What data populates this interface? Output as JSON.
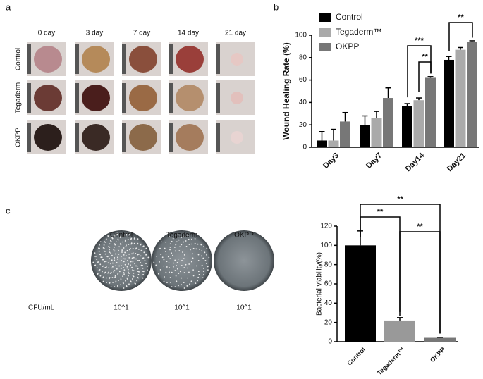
{
  "figure_a": {
    "panel_label": "a",
    "columns": [
      "0 day",
      "3 day",
      "7 day",
      "14 day",
      "21 day"
    ],
    "rows": [
      "Control",
      "Tegaderm",
      "OKPP"
    ]
  },
  "figure_c_plates": {
    "plates": [
      "Control",
      "Tegaderm",
      "OKPP"
    ],
    "unit_label": "CFU/mL",
    "counts": [
      "10^1",
      "10^1",
      "10^1"
    ]
  },
  "chart_data": [
    {
      "type": "grouped-bar",
      "panel_label": "b",
      "y_label": "Wound Healing Rate (%)",
      "categories": [
        "Day3",
        "Day7",
        "Day14",
        "Day21"
      ],
      "series": [
        {
          "name": "Control",
          "color": "#000000",
          "values": [
            6,
            20,
            37,
            78
          ],
          "errors": [
            8,
            8,
            2,
            3
          ]
        },
        {
          "name": "Tegaderm™",
          "color": "#aaaaaa",
          "values": [
            6,
            26,
            42,
            87
          ],
          "errors": [
            10,
            6,
            2,
            2
          ]
        },
        {
          "name": "OKPP",
          "color": "#777777",
          "values": [
            23,
            44,
            62,
            94
          ],
          "errors": [
            8,
            9,
            1,
            1
          ]
        }
      ],
      "ylim": [
        0,
        100
      ],
      "yticks": [
        0,
        20,
        40,
        60,
        80,
        100
      ],
      "legend": "top-left",
      "annotations": [
        "***",
        "**",
        "**"
      ]
    },
    {
      "type": "bar",
      "panel_label": "c",
      "y_label": "Bacterial viability(%)",
      "categories": [
        "Control",
        "Tegaderm™",
        "OKPP"
      ],
      "values": [
        100,
        22,
        4
      ],
      "errors": [
        15,
        3,
        0.5
      ],
      "colors": [
        "#000000",
        "#999999",
        "#777777"
      ],
      "ylim": [
        0,
        120
      ],
      "yticks": [
        0,
        20,
        40,
        60,
        80,
        100,
        120
      ],
      "annotations": [
        "**",
        "**",
        "**"
      ]
    }
  ]
}
